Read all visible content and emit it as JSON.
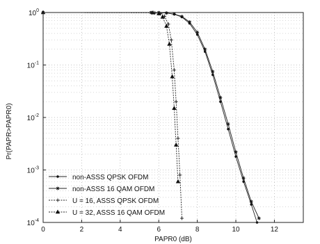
{
  "chart_data": {
    "type": "line",
    "xlabel": "PAPR0 (dB)",
    "ylabel": "Pr(PAPR>PAPR0)",
    "xlim": [
      0,
      13.5
    ],
    "ylim": [
      0.0001,
      1
    ],
    "yscale": "log",
    "grid": true,
    "legend_position": "bottom-left",
    "x_ticks": [
      0,
      2,
      4,
      6,
      8,
      10,
      12
    ],
    "x_tick_labels": [
      "0",
      "2",
      "4",
      "6",
      "8",
      "10",
      "12"
    ],
    "y_ticks": [
      1,
      0.1,
      0.01,
      0.001,
      0.0001
    ],
    "y_tick_labels": [
      {
        "base": "10",
        "exp": "0"
      },
      {
        "base": "10",
        "exp": "-1"
      },
      {
        "base": "10",
        "exp": "-2"
      },
      {
        "base": "10",
        "exp": "-3"
      },
      {
        "base": "10",
        "exp": "-4"
      }
    ],
    "series": [
      {
        "name": "non-ASSS QPSK OFDM",
        "marker": "dot",
        "x": [
          0,
          5.6,
          6.0,
          6.4,
          6.8,
          7.2,
          7.6,
          8.0,
          8.4,
          8.8,
          9.2,
          9.6,
          10.0,
          10.4,
          10.8,
          11.1
        ],
        "y": [
          1,
          1,
          0.995,
          0.98,
          0.93,
          0.82,
          0.62,
          0.38,
          0.18,
          0.065,
          0.02,
          0.006,
          0.0018,
          0.0006,
          0.00022,
          0.0001
        ]
      },
      {
        "name": "non-ASSS 16 QAM OFDM",
        "marker": "star",
        "x": [
          0,
          5.6,
          6.0,
          6.4,
          6.8,
          7.2,
          7.6,
          8.0,
          8.4,
          8.8,
          9.2,
          9.6,
          10.0,
          10.4,
          10.8,
          11.2
        ],
        "y": [
          1,
          1,
          0.995,
          0.98,
          0.935,
          0.84,
          0.66,
          0.42,
          0.2,
          0.075,
          0.024,
          0.0075,
          0.0022,
          0.0007,
          0.00025,
          0.00012
        ]
      },
      {
        "name": "U = 16, ASSS QPSK OFDM",
        "marker": "plus",
        "x": [
          0,
          5.8,
          6.1,
          6.3,
          6.5,
          6.65,
          6.8,
          6.9,
          7.0,
          7.1,
          7.2
        ],
        "y": [
          1,
          0.99,
          0.95,
          0.85,
          0.6,
          0.3,
          0.08,
          0.02,
          0.004,
          0.0008,
          0.00012
        ]
      },
      {
        "name": "U = 32, ASSS 16 QAM OFDM",
        "marker": "triangle",
        "x": [
          0,
          5.7,
          6.0,
          6.2,
          6.4,
          6.55,
          6.7,
          6.8,
          6.9,
          7.0
        ],
        "y": [
          1,
          0.99,
          0.95,
          0.82,
          0.55,
          0.25,
          0.06,
          0.015,
          0.003,
          0.0006
        ]
      }
    ]
  }
}
